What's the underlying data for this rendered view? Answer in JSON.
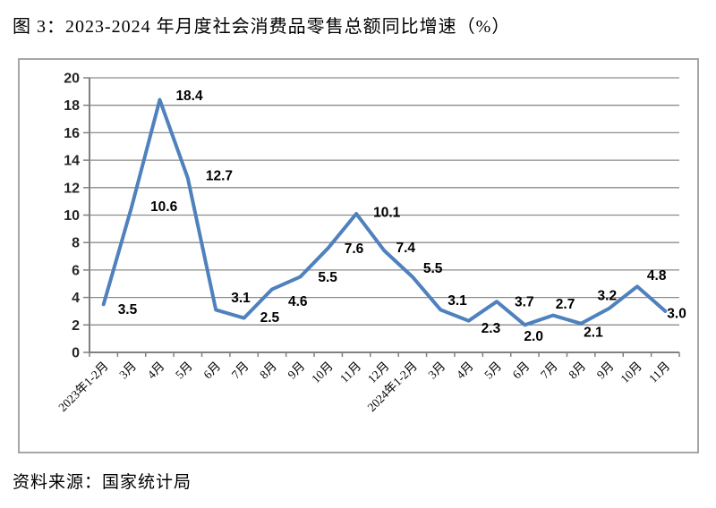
{
  "title": "图 3：2023-2024 年月度社会消费品零售总额同比增速（%）",
  "source": "资料来源：国家统计局",
  "chart_data": {
    "type": "line",
    "categories": [
      "2023年1-2月",
      "3月",
      "4月",
      "5月",
      "6月",
      "7月",
      "8月",
      "9月",
      "10月",
      "11月",
      "12月",
      "2024年1-2月",
      "3月",
      "4月",
      "5月",
      "6月",
      "7月",
      "8月",
      "9月",
      "10月",
      "11月"
    ],
    "values": [
      3.5,
      10.6,
      18.4,
      12.7,
      3.1,
      2.5,
      4.6,
      5.5,
      7.6,
      10.1,
      7.4,
      5.5,
      3.1,
      2.3,
      3.7,
      2.0,
      2.7,
      2.1,
      3.2,
      4.8,
      3.0
    ],
    "data_labels": [
      "3.5",
      "10.6",
      "18.4",
      "12.7",
      "3.1",
      "2.5",
      "4.6",
      "5.5",
      "7.6",
      "10.1",
      "7.4",
      "5.5",
      "3.1",
      "2.3",
      "3.7",
      "2.0",
      "2.7",
      "2.1",
      "3.2",
      "4.8",
      "3.0"
    ],
    "title": "",
    "xlabel": "",
    "ylabel": "",
    "ylim": [
      0,
      20
    ],
    "yticks": [
      0,
      2,
      4,
      6,
      8,
      10,
      12,
      14,
      16,
      18,
      20
    ],
    "grid": true,
    "legend": "none",
    "line_color": "#4F81BD",
    "axis_color": "#808080",
    "grid_color": "#8c8c8c",
    "label_color": "#000000",
    "tick_label_color": "#262626"
  }
}
